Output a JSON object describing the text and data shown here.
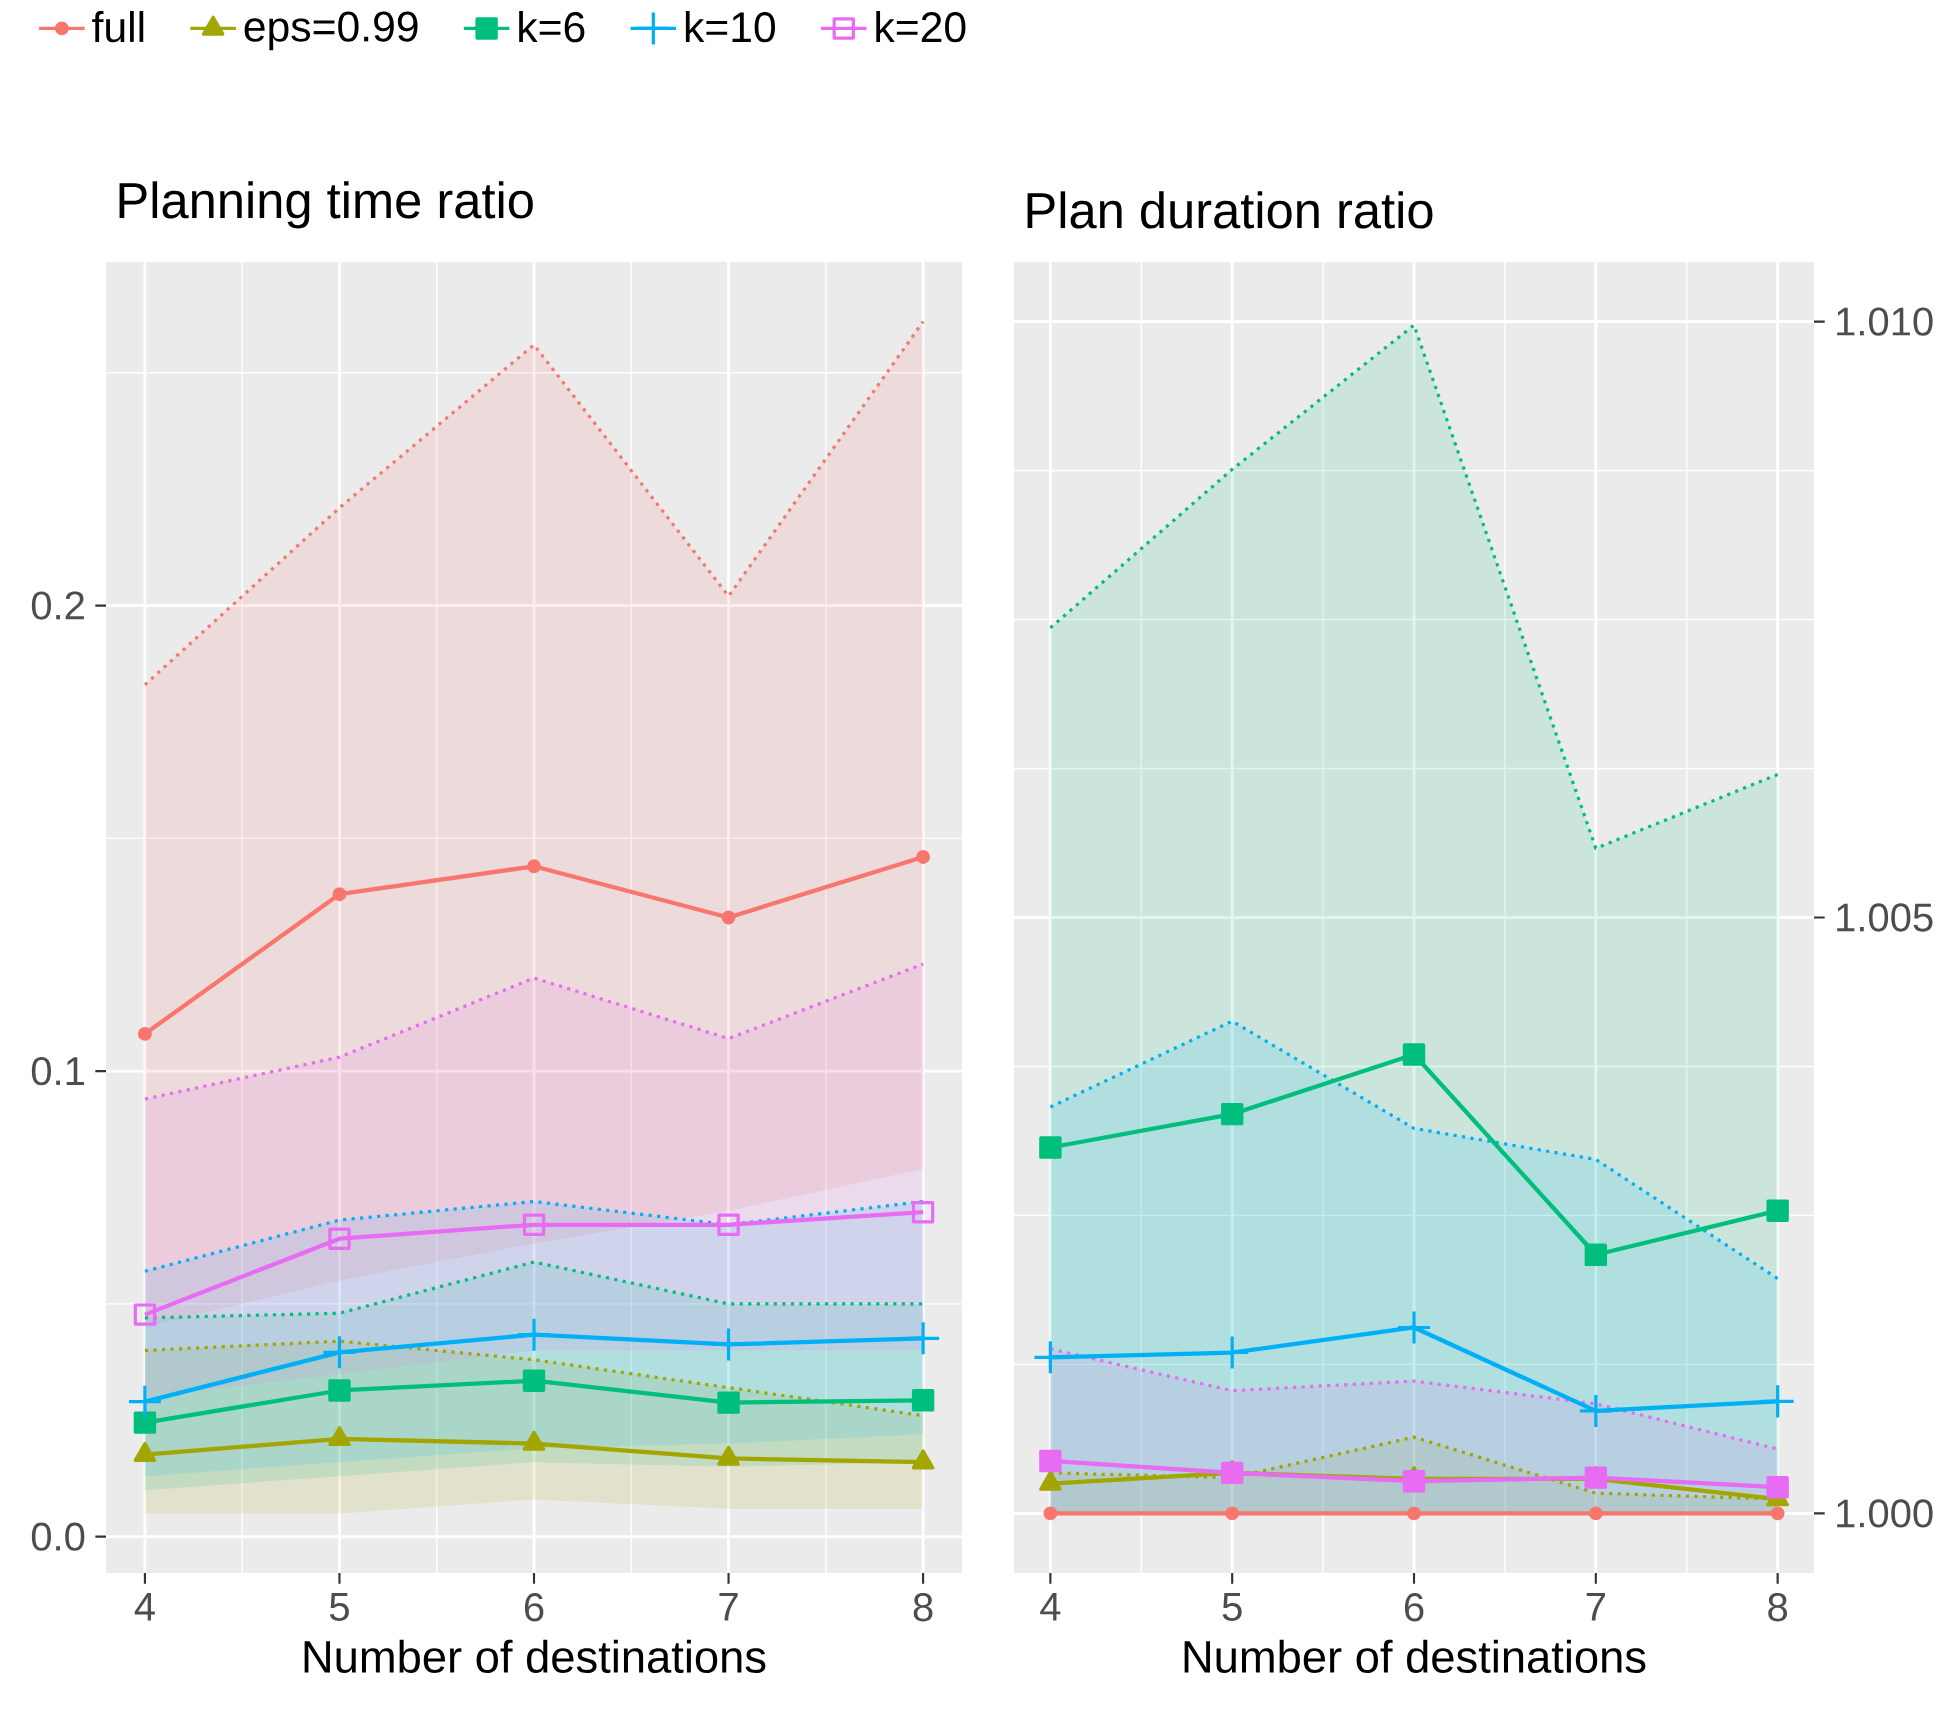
{
  "chart_data": [
    {
      "type": "line",
      "title": "Planning time ratio",
      "xlabel": "Number of destinations",
      "x": [
        4,
        5,
        6,
        7,
        8
      ],
      "xlim": [
        3.8,
        8.2
      ],
      "xticks": [
        4,
        5,
        6,
        7,
        8
      ],
      "ylim": [
        -0.0078,
        0.2738
      ],
      "yticks": [
        {
          "value": 0,
          "label": "0.0"
        },
        0.1,
        0.2
      ],
      "grid": true,
      "legend": "top",
      "series": [
        {
          "color": "#F8766D",
          "marker": "none",
          "line_style": "dotted",
          "values": [
            0.183,
            0.221,
            0.256,
            0.202,
            0.261
          ]
        },
        {
          "color": "#A3A500",
          "marker": "none",
          "line_style": "dotted",
          "values": [
            0.04,
            0.042,
            0.038,
            0.032,
            0.026
          ]
        },
        {
          "color": "#00BF7D",
          "marker": "none",
          "line_style": "dotted",
          "values": [
            0.047,
            0.048,
            0.059,
            0.05,
            0.05
          ]
        },
        {
          "color": "#00B0F6",
          "marker": "none",
          "line_style": "dotted",
          "values": [
            0.057,
            0.068,
            0.072,
            0.067,
            0.072
          ]
        },
        {
          "color": "#E76BF3",
          "marker": "none",
          "line_style": "dotted",
          "values": [
            0.094,
            0.103,
            0.12,
            0.107,
            0.123
          ]
        },
        {
          "name": "full",
          "color": "#F8766D",
          "marker": "circle",
          "line_style": "solid",
          "values": [
            0.108,
            0.138,
            0.144,
            0.133,
            0.146
          ],
          "lower": [
            0.045,
            0.055,
            0.063,
            0.07,
            0.079
          ],
          "upper": [
            0.183,
            0.221,
            0.256,
            0.202,
            0.261
          ]
        },
        {
          "name": "eps=0.99",
          "color": "#A3A500",
          "marker": "triangle",
          "line_style": "solid",
          "values": [
            0.0176,
            0.021,
            0.02,
            0.0168,
            0.016
          ],
          "lower": [
            0.005,
            0.005,
            0.008,
            0.006,
            0.006
          ],
          "upper": [
            0.04,
            0.042,
            0.038,
            0.032,
            0.026
          ]
        },
        {
          "name": "k=6",
          "color": "#00BF7D",
          "marker": "square",
          "line_style": "solid",
          "values": [
            0.0245,
            0.0314,
            0.0335,
            0.0288,
            0.0293
          ],
          "lower": [
            0.01,
            0.013,
            0.016,
            0.015,
            0.016
          ],
          "upper": [
            0.047,
            0.048,
            0.059,
            0.05,
            0.05
          ]
        },
        {
          "name": "k=10",
          "color": "#00B0F6",
          "marker": "cross",
          "line_style": "solid",
          "values": [
            0.029,
            0.0396,
            0.0434,
            0.0413,
            0.0426
          ],
          "lower": [
            0.013,
            0.016,
            0.019,
            0.02,
            0.022
          ],
          "upper": [
            0.057,
            0.068,
            0.072,
            0.067,
            0.072
          ]
        },
        {
          "name": "k=20",
          "color": "#E76BF3",
          "marker": "square",
          "line_style": "solid",
          "values": [
            0.0477,
            0.064,
            0.067,
            0.067,
            0.0697
          ],
          "lower": [
            0.03,
            0.035,
            0.04,
            0.04,
            0.04
          ],
          "upper": [
            0.094,
            0.103,
            0.12,
            0.107,
            0.123
          ]
        }
      ]
    },
    {
      "type": "line",
      "title": "Plan duration ratio",
      "xlabel": "Number of destinations",
      "x": [
        4,
        5,
        6,
        7,
        8
      ],
      "xlim": [
        3.8,
        8.2
      ],
      "xticks": [
        4,
        5,
        6,
        7,
        8
      ],
      "ylim": [
        0.9995,
        1.0105
      ],
      "yticks": [
        {
          "value": 1.0,
          "label": "1.000"
        },
        {
          "value": 1.005,
          "label": "1.005"
        },
        {
          "value": 1.01,
          "label": "1.010"
        }
      ],
      "grid": true,
      "series": [
        {
          "color": "#A3A500",
          "marker": "none",
          "line_style": "dotted",
          "values": [
            1.00034,
            1.0003,
            1.00064,
            1.00017,
            1.00012
          ]
        },
        {
          "color": "#00BF7D",
          "marker": "none",
          "line_style": "dotted",
          "values": [
            1.00743,
            1.00876,
            1.00997,
            1.00558,
            1.0062
          ]
        },
        {
          "color": "#00B0F6",
          "marker": "none",
          "line_style": "dotted",
          "values": [
            1.00341,
            1.00413,
            1.00323,
            1.00297,
            1.00197
          ]
        },
        {
          "color": "#E76BF3",
          "marker": "none",
          "line_style": "dotted",
          "values": [
            1.00138,
            1.00103,
            1.00111,
            1.00092,
            1.00054
          ]
        },
        {
          "color": "#F8766D",
          "marker": "circle",
          "line_style": "solid",
          "values": [
            1.0,
            1.0,
            1.0,
            1.0,
            1.0
          ]
        },
        {
          "color": "#A3A500",
          "marker": "triangle",
          "line_style": "solid",
          "values": [
            1.00025,
            1.00034,
            1.00029,
            1.00029,
            1.00012
          ],
          "lower": [
            1.0,
            1.0,
            1.0,
            1.0,
            1.0
          ],
          "upper": [
            1.00034,
            1.0003,
            1.00064,
            1.00017,
            1.00012
          ]
        },
        {
          "color": "#00BF7D",
          "marker": "square",
          "line_style": "solid",
          "values": [
            1.00307,
            1.00335,
            1.00385,
            1.00217,
            1.00254
          ],
          "lower": [
            1.0,
            1.0,
            1.0,
            1.0,
            1.0
          ],
          "upper": [
            1.00743,
            1.00876,
            1.00997,
            1.00558,
            1.0062
          ]
        },
        {
          "color": "#00B0F6",
          "marker": "cross",
          "line_style": "solid",
          "values": [
            1.00131,
            1.00135,
            1.00156,
            1.00086,
            1.00094
          ],
          "lower": [
            1.0,
            1.0,
            1.0,
            1.0,
            1.0
          ],
          "upper": [
            1.00341,
            1.00413,
            1.00323,
            1.00297,
            1.00197
          ]
        },
        {
          "color": "#E76BF3",
          "marker": "square",
          "line_style": "solid",
          "values": [
            1.00044,
            1.00034,
            1.00027,
            1.0003,
            1.00022
          ],
          "lower": [
            1.0,
            1.0,
            1.0,
            1.0,
            1.0
          ],
          "upper": [
            1.00138,
            1.00103,
            1.00111,
            1.00092,
            1.00054
          ]
        }
      ]
    }
  ]
}
